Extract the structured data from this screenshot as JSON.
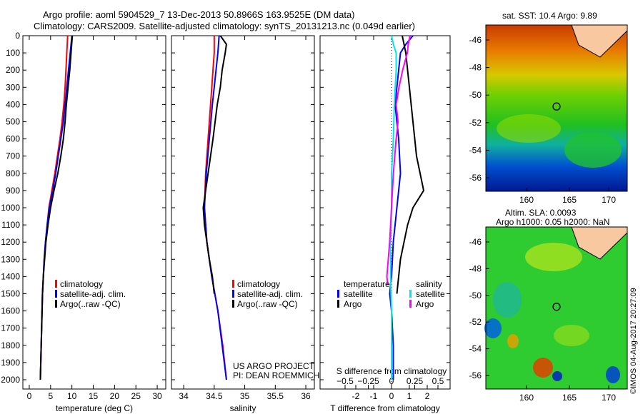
{
  "title_line1": "Argo profile: aoml 5904529_7 13-Dec-2013 50.8966S 163.9525E (DM data)",
  "title_line2": "Climatology: CARS2009. Satellite-adjusted climatology: synTS_20131213.nc (0.049d earlier)",
  "colors": {
    "climatology": "#ff0000",
    "satellite": "#0000ff",
    "argo": "#000000",
    "sal_satellite": "#00e5ee",
    "sal_argo": "#ff00ff"
  },
  "chart_data": [
    {
      "type": "line",
      "title": "",
      "xlabel": "temperature (deg C)",
      "ylabel": "",
      "xlim": [
        -1.5,
        32
      ],
      "ylim": [
        2054,
        0
      ],
      "xticks": [
        0,
        5,
        10,
        15,
        20,
        25,
        30
      ],
      "yticks": [
        0,
        100,
        200,
        300,
        400,
        500,
        600,
        700,
        800,
        900,
        1000,
        1100,
        1200,
        1300,
        1400,
        1500,
        1600,
        1700,
        1800,
        1900,
        2000
      ],
      "legend": [
        "climatology",
        "satellite-adj. clim.",
        "Argo(..raw -QC)"
      ],
      "series": [
        {
          "name": "climatology",
          "depth": [
            0,
            100,
            200,
            300,
            400,
            500,
            600,
            700,
            800,
            900,
            1000,
            1100,
            1200,
            1300,
            1400,
            1500,
            1700,
            2000
          ],
          "values": [
            9.0,
            8.8,
            8.6,
            8.4,
            8.1,
            7.7,
            7.2,
            6.6,
            6.0,
            5.3,
            4.6,
            4.2,
            3.8,
            3.5,
            3.3,
            3.1,
            2.9,
            2.6
          ]
        },
        {
          "name": "satellite-adj. clim.",
          "depth": [
            0,
            100,
            200,
            300,
            400,
            500,
            600,
            700,
            800,
            900,
            1000,
            1100,
            1200,
            1300,
            1400,
            1500,
            1700,
            2000
          ],
          "values": [
            10.0,
            9.6,
            9.2,
            8.8,
            8.4,
            8.0,
            7.4,
            6.8,
            6.2,
            5.5,
            4.7,
            4.2,
            3.8,
            3.5,
            3.3,
            3.1,
            2.9,
            2.6
          ]
        },
        {
          "name": "Argo(..raw -QC)",
          "depth": [
            0,
            100,
            200,
            300,
            400,
            500,
            600,
            700,
            800,
            900,
            1000,
            1100,
            1200,
            1300,
            1400,
            1500,
            1700,
            2000
          ],
          "values": [
            10.1,
            9.8,
            9.5,
            9.1,
            8.7,
            8.4,
            8.0,
            7.4,
            6.7,
            5.8,
            5.0,
            4.4,
            3.9,
            3.6,
            3.3,
            3.1,
            2.9,
            2.6
          ]
        }
      ]
    },
    {
      "type": "line",
      "title": "",
      "xlabel": "salinity",
      "xlim": [
        33.8,
        36.14
      ],
      "ylim": [
        2054,
        0
      ],
      "xticks": [
        34,
        34.5,
        35,
        35.5,
        36
      ],
      "legend": [
        "climatology",
        "satellite-adj. clim.",
        "Argo(..raw -QC)"
      ],
      "annotation": [
        "US ARGO PROJECT",
        "PI: DEAN ROEMMICH"
      ],
      "series": [
        {
          "name": "climatology",
          "depth": [
            0,
            100,
            200,
            400,
            600,
            800,
            1000,
            1200,
            1400,
            1600,
            1800,
            2000
          ],
          "values": [
            34.5,
            34.5,
            34.48,
            34.44,
            34.4,
            34.36,
            34.34,
            34.38,
            34.46,
            34.56,
            34.64,
            34.7
          ]
        },
        {
          "name": "satellite-adj. clim.",
          "depth": [
            0,
            100,
            200,
            400,
            600,
            800,
            1000,
            1200,
            1400,
            1600,
            1800,
            2000
          ],
          "values": [
            34.58,
            34.56,
            34.53,
            34.47,
            34.42,
            34.37,
            34.34,
            34.38,
            34.46,
            34.56,
            34.63,
            34.7
          ]
        },
        {
          "name": "Argo(..raw -QC)",
          "depth": [
            0,
            50,
            100,
            200,
            300,
            400,
            600,
            800,
            900,
            1000,
            1100,
            1200,
            1300,
            1400,
            1500
          ],
          "values": [
            34.6,
            34.7,
            34.68,
            34.63,
            34.6,
            34.55,
            34.48,
            34.4,
            34.36,
            34.32,
            34.34,
            34.38,
            34.42,
            34.47,
            34.5
          ]
        }
      ]
    },
    {
      "type": "line",
      "title": "",
      "xlabel": "T difference from climatology",
      "x2label": "S difference from climatology",
      "xlim": [
        -4,
        3.28
      ],
      "xticks": [
        -2,
        -1,
        0,
        1,
        2
      ],
      "x2ticks": [
        -0.5,
        -0.25,
        0,
        0.25,
        0.5
      ],
      "ylim": [
        2054,
        0
      ],
      "legend": {
        "temperature_title": "temperature",
        "salinity_title": "salinity",
        "satellite": "satellite",
        "argo": "Argo"
      },
      "series": [
        {
          "name": "T satellite",
          "axis": "T",
          "depth": [
            0,
            50,
            100,
            200,
            300,
            400,
            600,
            800,
            1000,
            1200,
            1400,
            1500,
            1600,
            1800,
            2000
          ],
          "values": [
            1.2,
            0.8,
            0.5,
            0.4,
            0.3,
            0.2,
            0.4,
            0.5,
            0.3,
            0.1,
            0.0,
            -0.1,
            0.0,
            0.1,
            0.1
          ]
        },
        {
          "name": "T Argo",
          "axis": "T",
          "depth": [
            0,
            100,
            200,
            300,
            400,
            500,
            600,
            700,
            800,
            900,
            1000,
            1100,
            1200,
            1300,
            1400,
            1500
          ],
          "values": [
            0.6,
            0.8,
            0.9,
            1.0,
            1.1,
            1.2,
            1.3,
            1.4,
            1.6,
            1.8,
            1.2,
            0.9,
            0.7,
            0.5,
            0.4,
            0.3
          ]
        },
        {
          "name": "S satellite",
          "axis": "S",
          "depth": [
            0,
            50,
            100,
            200,
            400,
            600,
            800,
            1000,
            1200,
            1400,
            1600,
            1800,
            2000
          ],
          "values": [
            0.0,
            0.02,
            0.05,
            0.05,
            0.03,
            0.02,
            0.0,
            0.0,
            -0.01,
            -0.01,
            0.0,
            0.0,
            0.0
          ]
        },
        {
          "name": "S Argo",
          "axis": "S",
          "depth": [
            0,
            50,
            100,
            200,
            300,
            400,
            500,
            600,
            800,
            1000,
            1200,
            1400,
            1450
          ],
          "values": [
            0.2,
            0.18,
            0.17,
            0.12,
            0.08,
            0.05,
            0.07,
            0.05,
            0.02,
            0.0,
            -0.02,
            -0.05,
            -0.04
          ]
        }
      ]
    }
  ],
  "map_sst": {
    "title": "sat. SST: 10.4 Argo: 9.89",
    "lat_ticks": [
      "-46",
      "-48",
      "-50",
      "-52",
      "-54",
      "-56"
    ],
    "lon_ticks": [
      "160",
      "165",
      "170"
    ]
  },
  "map_sla": {
    "title1": "Altim. SLA: 0.0093",
    "title2": "Argo h1000: 0.05 h2000: NaN",
    "lat_ticks": [
      "-46",
      "-48",
      "-50",
      "-52",
      "-54",
      "-56"
    ],
    "lon_ticks": [
      "160",
      "165",
      "170"
    ]
  },
  "credit": "©IMOS 04-Aug-2017 20:27:09"
}
